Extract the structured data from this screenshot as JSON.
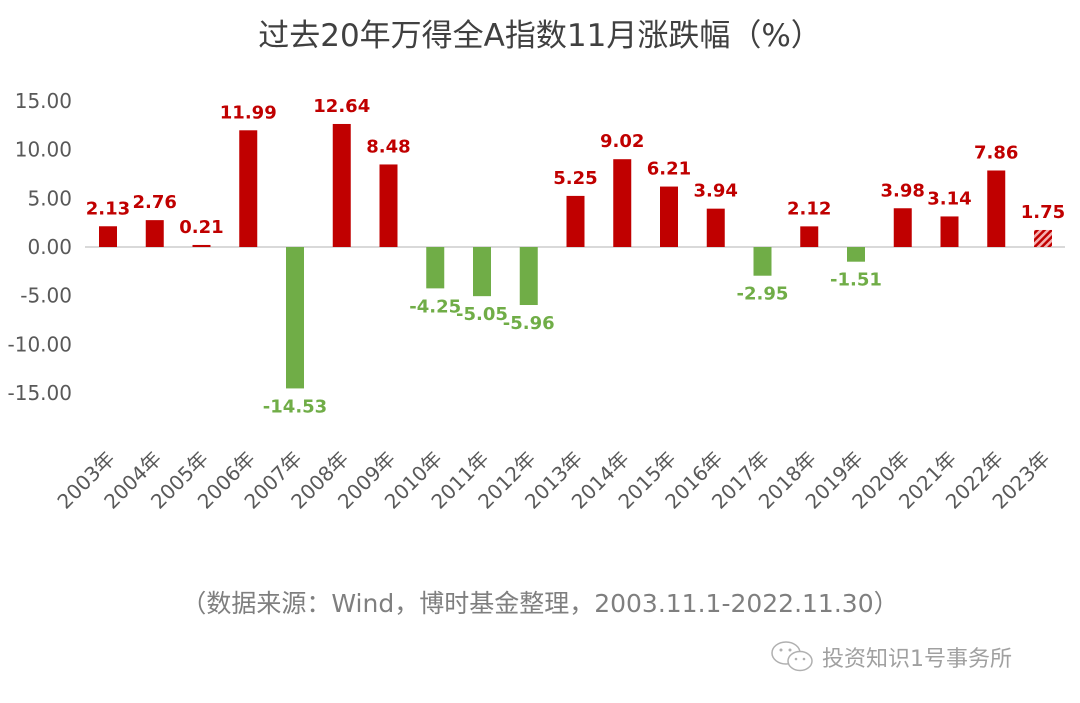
{
  "chart_data": {
    "type": "bar",
    "title": "过去20年万得全A指数11月涨跌幅（%）",
    "categories": [
      "2003年",
      "2004年",
      "2005年",
      "2006年",
      "2007年",
      "2008年",
      "2009年",
      "2010年",
      "2011年",
      "2012年",
      "2013年",
      "2014年",
      "2015年",
      "2016年",
      "2017年",
      "2018年",
      "2019年",
      "2020年",
      "2021年",
      "2022年",
      "2023年"
    ],
    "values": [
      2.13,
      2.76,
      0.21,
      11.99,
      -14.53,
      12.64,
      8.48,
      -4.25,
      -5.05,
      -5.96,
      5.25,
      9.02,
      6.21,
      3.94,
      -2.95,
      2.12,
      -1.51,
      3.98,
      3.14,
      7.86,
      1.75
    ],
    "data_labels": [
      "2.13",
      "2.76",
      "0.21",
      "11.99",
      "-14.53",
      "12.64",
      "8.48",
      "-4.25",
      "-5.05",
      "-5.96",
      "5.25",
      "9.02",
      "6.21",
      "3.94",
      "-2.95",
      "2.12",
      "-1.51",
      "3.98",
      "3.14",
      "7.86",
      "1.75"
    ],
    "yticks": [
      "15.00",
      "10.00",
      "5.00",
      "0.00",
      "-5.00",
      "-10.00",
      "-15.00"
    ],
    "ylim": [
      -15,
      15
    ],
    "grid": false,
    "colors": {
      "positive": "#c00000",
      "negative": "#70ad47",
      "last_bar_pattern": "hatched red"
    },
    "xlabel": "",
    "ylabel": ""
  },
  "source_note": "（数据来源：Wind，博时基金整理，2003.11.1-2022.11.30）",
  "watermark": {
    "icon": "wechat-icon",
    "text": "投资知识1号事务所"
  }
}
